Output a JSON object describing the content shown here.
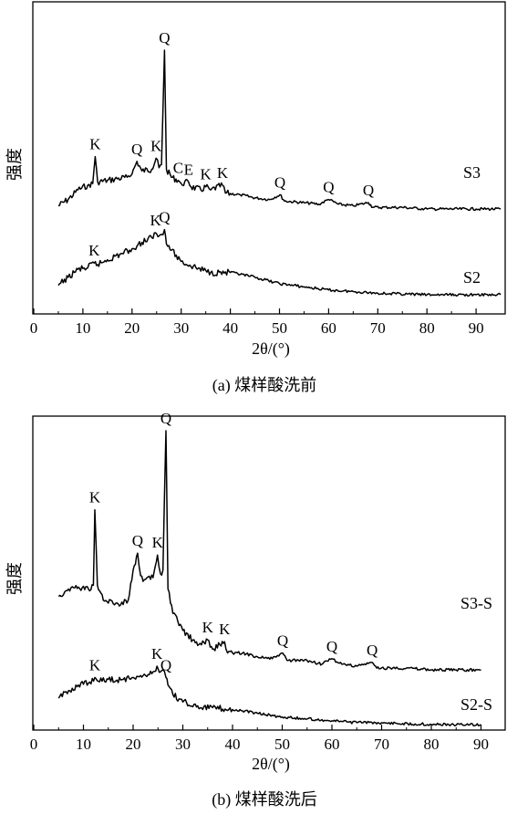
{
  "figure": {
    "panels": [
      {
        "caption": "(a) 煤样酸洗前",
        "xlabel": "2θ/(°)",
        "ylabel": "强度",
        "xticks": [
          "0",
          "10",
          "20",
          "30",
          "40",
          "50",
          "60",
          "70",
          "80",
          "90"
        ],
        "series_labels": [
          "S3",
          "S2"
        ],
        "peaks_upper": [
          {
            "text": "K",
            "x": 12.5
          },
          {
            "text": "Q",
            "x": 21
          },
          {
            "text": "K",
            "x": 24.9
          },
          {
            "text": "Q",
            "x": 26.6
          },
          {
            "text": "C",
            "x": 29.4
          },
          {
            "text": "E",
            "x": 31.5
          },
          {
            "text": "K",
            "x": 35
          },
          {
            "text": "K",
            "x": 38.4
          },
          {
            "text": "Q",
            "x": 50.1
          },
          {
            "text": "Q",
            "x": 60
          },
          {
            "text": "Q",
            "x": 68.1
          }
        ],
        "peaks_lower": [
          {
            "text": "K",
            "x": 12.3
          },
          {
            "text": "K",
            "x": 24.8
          },
          {
            "text": "Q",
            "x": 26.6
          }
        ]
      },
      {
        "caption": "(b) 煤样酸洗后",
        "xlabel": "2θ/(°)",
        "ylabel": "强度",
        "xticks": [
          "0",
          "10",
          "20",
          "30",
          "40",
          "50",
          "60",
          "70",
          "80",
          "90"
        ],
        "series_labels": [
          "S3-S",
          "S2-S"
        ],
        "peaks_upper": [
          {
            "text": "K",
            "x": 12.3
          },
          {
            "text": "Q",
            "x": 20.9
          },
          {
            "text": "K",
            "x": 24.9
          },
          {
            "text": "Q",
            "x": 26.6
          },
          {
            "text": "K",
            "x": 35
          },
          {
            "text": "K",
            "x": 38.4
          },
          {
            "text": "Q",
            "x": 50.1
          },
          {
            "text": "Q",
            "x": 60
          },
          {
            "text": "Q",
            "x": 68.1
          }
        ],
        "peaks_lower": [
          {
            "text": "K",
            "x": 12.3
          },
          {
            "text": "K",
            "x": 24.8
          },
          {
            "text": "Q",
            "x": 26.6
          }
        ]
      }
    ]
  },
  "chart_data": [
    {
      "type": "line",
      "xlabel": "2θ/(°)",
      "ylabel": "强度",
      "xlim": [
        0,
        97
      ],
      "series": [
        {
          "name": "S3",
          "x": [
            5,
            7,
            9,
            11,
            12,
            12.5,
            13,
            15,
            17,
            19,
            20,
            21,
            22,
            24,
            24.9,
            25.5,
            26,
            26.6,
            27,
            28,
            29.4,
            30,
            31.5,
            32,
            34,
            35,
            36,
            38.4,
            39,
            42,
            45,
            48,
            50.1,
            51,
            55,
            58,
            60,
            62,
            65,
            68.1,
            69,
            75,
            80,
            85,
            90,
            95
          ],
          "y": [
            0.62,
            0.66,
            0.72,
            0.75,
            0.76,
            0.93,
            0.77,
            0.78,
            0.79,
            0.8,
            0.82,
            0.9,
            0.84,
            0.85,
            0.92,
            0.86,
            0.88,
            1.6,
            0.85,
            0.8,
            0.78,
            0.76,
            0.77,
            0.74,
            0.72,
            0.74,
            0.72,
            0.75,
            0.7,
            0.69,
            0.67,
            0.66,
            0.69,
            0.65,
            0.64,
            0.63,
            0.66,
            0.63,
            0.62,
            0.64,
            0.61,
            0.61,
            0.6,
            0.6,
            0.6,
            0.6
          ]
        },
        {
          "name": "S2",
          "x": [
            5,
            7,
            9,
            11,
            12.3,
            13,
            15,
            18,
            20,
            22,
            24,
            24.8,
            25.5,
            26,
            26.6,
            27,
            28,
            30,
            33,
            36,
            40,
            45,
            50,
            55,
            60,
            65,
            70,
            80,
            90,
            95
          ],
          "y": [
            0.12,
            0.17,
            0.22,
            0.23,
            0.26,
            0.25,
            0.28,
            0.32,
            0.35,
            0.39,
            0.42,
            0.45,
            0.43,
            0.44,
            0.47,
            0.38,
            0.34,
            0.27,
            0.23,
            0.2,
            0.2,
            0.17,
            0.13,
            0.11,
            0.09,
            0.08,
            0.07,
            0.06,
            0.06,
            0.06
          ]
        }
      ]
    },
    {
      "type": "line",
      "xlabel": "2θ/(°)",
      "ylabel": "强度",
      "xlim": [
        0,
        92
      ],
      "series": [
        {
          "name": "S3-S",
          "x": [
            5,
            7,
            9,
            11,
            12,
            12.3,
            12.8,
            14,
            17,
            19,
            20,
            20.9,
            21.5,
            22,
            24,
            24.9,
            25.5,
            26,
            26.6,
            27,
            28,
            30,
            33,
            35,
            36,
            38.4,
            39,
            42,
            45,
            48,
            50.1,
            51,
            55,
            58,
            60,
            62,
            65,
            68.1,
            69,
            75,
            80,
            85,
            90
          ],
          "y": [
            0.74,
            0.78,
            0.79,
            0.78,
            0.8,
            1.2,
            0.8,
            0.72,
            0.7,
            0.72,
            0.88,
            0.97,
            0.85,
            0.82,
            0.84,
            0.96,
            0.86,
            0.88,
            1.62,
            0.78,
            0.65,
            0.56,
            0.48,
            0.51,
            0.46,
            0.5,
            0.44,
            0.44,
            0.42,
            0.41,
            0.44,
            0.4,
            0.4,
            0.38,
            0.41,
            0.38,
            0.37,
            0.39,
            0.36,
            0.36,
            0.35,
            0.35,
            0.35
          ]
        },
        {
          "name": "S2-S",
          "x": [
            5,
            7,
            9,
            11,
            12.3,
            13,
            15,
            18,
            20,
            22,
            24,
            24.8,
            25.5,
            26,
            26.6,
            27,
            28,
            30,
            33,
            36,
            40,
            45,
            50,
            55,
            60,
            65,
            70,
            80,
            90
          ],
          "y": [
            0.2,
            0.24,
            0.27,
            0.28,
            0.31,
            0.29,
            0.3,
            0.3,
            0.31,
            0.32,
            0.34,
            0.37,
            0.34,
            0.35,
            0.31,
            0.27,
            0.22,
            0.18,
            0.16,
            0.15,
            0.14,
            0.12,
            0.1,
            0.09,
            0.08,
            0.07,
            0.07,
            0.06,
            0.06
          ]
        }
      ]
    }
  ]
}
